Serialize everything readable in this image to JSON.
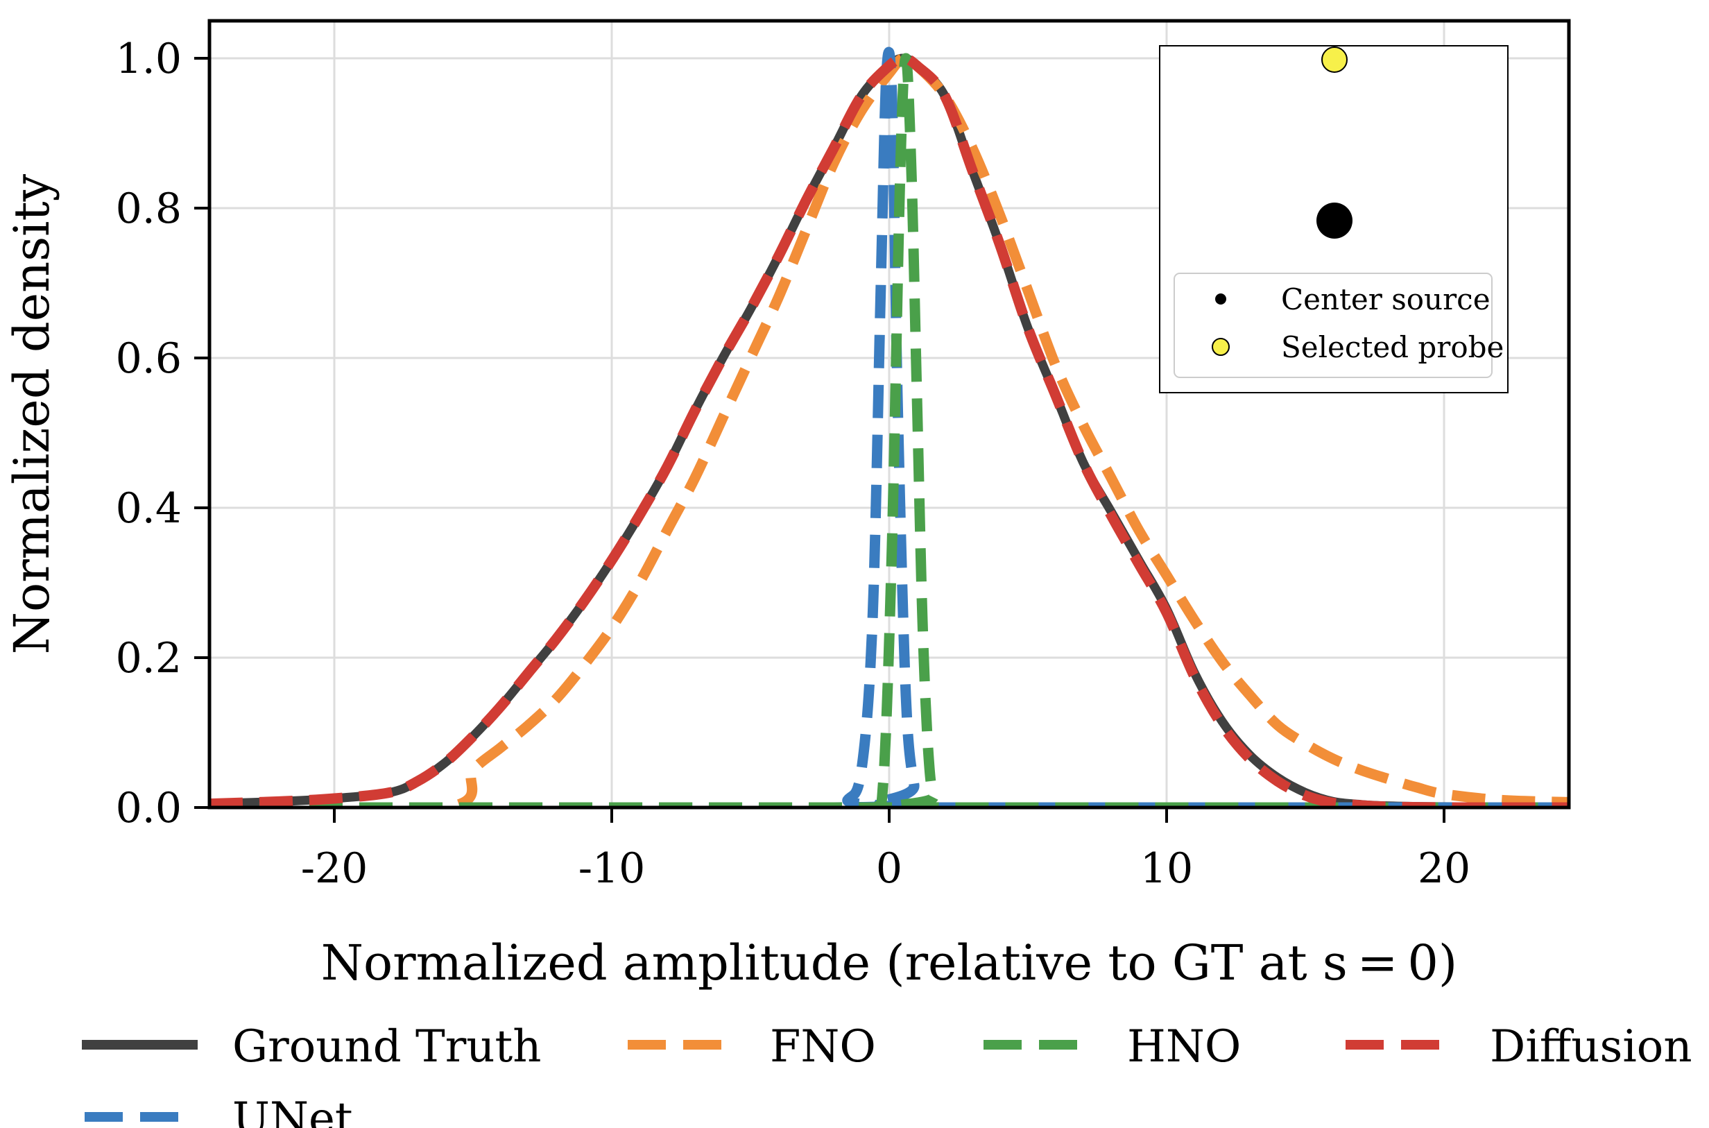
{
  "chart_data": {
    "type": "line",
    "title": "",
    "xlabel": "Normalized amplitude (relative to GT at s = 0)",
    "ylabel": "Normalized density",
    "xlim": [
      -24.5,
      24.5
    ],
    "ylim": [
      0,
      1.05
    ],
    "xticks": [
      -20,
      -10,
      0,
      10,
      20
    ],
    "xtick_labels": [
      "-20",
      "-10",
      "0",
      "10",
      "20"
    ],
    "yticks": [
      0.0,
      0.2,
      0.4,
      0.6,
      0.8,
      1.0
    ],
    "ytick_labels": [
      "0.0",
      "0.2",
      "0.4",
      "0.6",
      "0.8",
      "1.0"
    ],
    "grid": true,
    "legend_position": "bottom, outside",
    "series": [
      {
        "name": "Ground Truth",
        "color": "#404040",
        "style": "solid",
        "x": [
          -24.5,
          -22,
          -20,
          -18,
          -17,
          -16,
          -15,
          -14,
          -13,
          -12,
          -11,
          -10,
          -9,
          -8,
          -7,
          -6,
          -5,
          -4,
          -3,
          -2,
          -1,
          0,
          0.5,
          1,
          2,
          3,
          4,
          5,
          6,
          7,
          8,
          9,
          10,
          11,
          12,
          13,
          14,
          15,
          16,
          17,
          18,
          20,
          24.5
        ],
        "y": [
          0.005,
          0.008,
          0.012,
          0.02,
          0.035,
          0.06,
          0.095,
          0.135,
          0.18,
          0.225,
          0.275,
          0.33,
          0.39,
          0.455,
          0.53,
          0.6,
          0.665,
          0.735,
          0.81,
          0.88,
          0.95,
          0.99,
          1.0,
          0.99,
          0.95,
          0.85,
          0.75,
          0.64,
          0.55,
          0.46,
          0.395,
          0.33,
          0.265,
          0.18,
          0.115,
          0.07,
          0.04,
          0.02,
          0.008,
          0.004,
          0.002,
          0.001,
          0.0
        ]
      },
      {
        "name": "FNO",
        "color": "#f28e38",
        "style": "dashed",
        "x": [
          -24.5,
          -16,
          -15,
          -14,
          -13,
          -12,
          -11,
          -10,
          -9,
          -8,
          -7,
          -6,
          -5,
          -4,
          -3,
          -2,
          -1,
          0,
          0.5,
          1,
          2,
          3,
          4,
          5,
          6,
          7,
          8,
          9,
          10,
          11,
          12,
          13,
          14,
          15,
          16,
          17,
          18,
          19,
          20,
          22,
          24.5
        ],
        "y": [
          0.0,
          0.0,
          0.05,
          0.08,
          0.11,
          0.145,
          0.19,
          0.24,
          0.3,
          0.37,
          0.44,
          0.52,
          0.6,
          0.68,
          0.77,
          0.86,
          0.93,
          0.98,
          1.0,
          0.99,
          0.95,
          0.88,
          0.79,
          0.69,
          0.59,
          0.51,
          0.44,
          0.37,
          0.31,
          0.25,
          0.195,
          0.15,
          0.11,
          0.085,
          0.065,
          0.05,
          0.038,
          0.027,
          0.018,
          0.01,
          0.007
        ]
      },
      {
        "name": "HNO",
        "color": "#4aa04a",
        "style": "dashed",
        "x": [
          -24.5,
          -2,
          -0.5,
          -0.2,
          0.1,
          0.4,
          0.6,
          0.8,
          1.0,
          1.2,
          1.4,
          1.6,
          2.0,
          24.5
        ],
        "y": [
          0.0,
          0.0,
          0.0,
          0.04,
          0.35,
          0.85,
          1.0,
          0.85,
          0.55,
          0.25,
          0.08,
          0.015,
          0.0,
          0.0
        ]
      },
      {
        "name": "Diffusion",
        "color": "#d13c34",
        "style": "dashed",
        "x": [
          -24.5,
          -22,
          -20,
          -18,
          -17,
          -16,
          -15,
          -14,
          -13,
          -12,
          -11,
          -10,
          -9,
          -8,
          -7,
          -6,
          -5,
          -4,
          -3,
          -2,
          -1,
          0,
          0.5,
          1,
          2,
          3,
          4,
          5,
          6,
          7,
          8,
          9,
          10,
          11,
          12,
          13,
          14,
          15,
          16,
          17,
          18,
          20,
          24.5
        ],
        "y": [
          0.005,
          0.008,
          0.012,
          0.02,
          0.035,
          0.06,
          0.095,
          0.135,
          0.18,
          0.225,
          0.275,
          0.33,
          0.39,
          0.455,
          0.53,
          0.6,
          0.665,
          0.735,
          0.81,
          0.88,
          0.95,
          0.99,
          1.0,
          0.99,
          0.95,
          0.85,
          0.75,
          0.64,
          0.55,
          0.46,
          0.39,
          0.325,
          0.26,
          0.175,
          0.11,
          0.065,
          0.035,
          0.016,
          0.006,
          0.003,
          0.001,
          0.0,
          0.0
        ]
      },
      {
        "name": "UNet",
        "color": "#3a7cc0",
        "style": "dashed",
        "x": [
          -24.5,
          -2,
          -1.5,
          -1.0,
          -0.6,
          -0.3,
          -0.1,
          0.1,
          0.3,
          0.6,
          0.9,
          1.2,
          24.5
        ],
        "y": [
          0.0,
          0.0,
          0.01,
          0.05,
          0.25,
          0.7,
          0.98,
          0.95,
          0.55,
          0.15,
          0.03,
          0.0,
          0.0
        ]
      }
    ],
    "inset": {
      "points": [
        {
          "name": "Selected probe",
          "color": "#f7f04a"
        },
        {
          "name": "Center source",
          "color": "#000000"
        }
      ],
      "legend": [
        "Center source",
        "Selected probe"
      ]
    }
  }
}
